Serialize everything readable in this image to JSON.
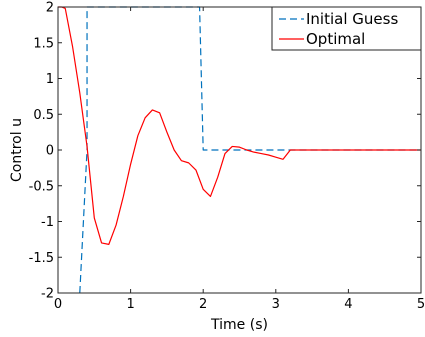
{
  "chart_data": {
    "type": "line",
    "xlabel": "Time (s)",
    "ylabel": "Control u",
    "xlim": [
      0,
      5
    ],
    "ylim": [
      -2,
      2
    ],
    "xticks": [
      0,
      1,
      2,
      3,
      4,
      5
    ],
    "xtick_labels": [
      "0",
      "1",
      "2",
      "3",
      "4",
      "5"
    ],
    "yticks": [
      -2,
      -1.5,
      -1,
      -0.5,
      0,
      0.5,
      1,
      1.5,
      2
    ],
    "ytick_labels": [
      "-2",
      "-1.5",
      "-1",
      "-0.5",
      "0",
      "0.5",
      "1",
      "1.5",
      "2"
    ],
    "grid": false,
    "legend_position": "top-right",
    "series": [
      {
        "name": "Initial Guess",
        "color": "#0072BD",
        "dash": "dashed",
        "x": [
          0.3,
          0.3,
          0.4,
          0.4,
          1.95,
          1.95,
          2.0,
          2.0,
          5.0
        ],
        "y": [
          -2,
          -2,
          0.0,
          2,
          2,
          2,
          0,
          0,
          0
        ]
      },
      {
        "name": "Optimal",
        "color": "#FF0000",
        "dash": "solid",
        "x": [
          0.0,
          0.05,
          0.1,
          0.2,
          0.3,
          0.4,
          0.5,
          0.6,
          0.7,
          0.8,
          0.9,
          1.0,
          1.1,
          1.2,
          1.3,
          1.4,
          1.5,
          1.6,
          1.7,
          1.8,
          1.9,
          2.0,
          2.1,
          2.2,
          2.3,
          2.4,
          2.5,
          2.6,
          2.7,
          2.8,
          2.9,
          3.0,
          3.1,
          3.2,
          3.3,
          3.5,
          4.0,
          5.0
        ],
        "y": [
          2.0,
          2.0,
          1.98,
          1.45,
          0.8,
          0.05,
          -0.95,
          -1.3,
          -1.32,
          -1.05,
          -0.65,
          -0.2,
          0.2,
          0.45,
          0.56,
          0.52,
          0.25,
          0.0,
          -0.15,
          -0.18,
          -0.28,
          -0.55,
          -0.65,
          -0.38,
          -0.05,
          0.05,
          0.04,
          0.0,
          -0.03,
          -0.05,
          -0.07,
          -0.1,
          -0.13,
          0.0,
          0.0,
          0.0,
          0.0,
          0.0
        ]
      }
    ]
  }
}
